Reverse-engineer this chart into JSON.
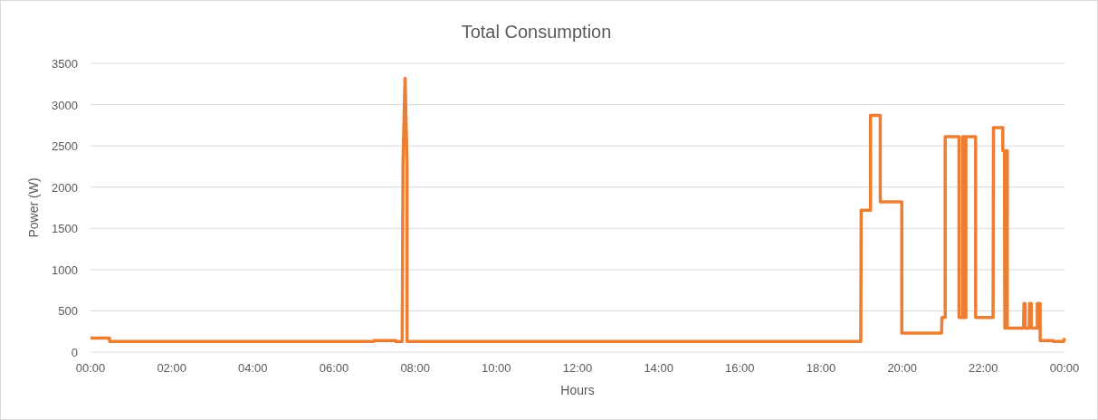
{
  "chart_data": {
    "type": "line",
    "title": "Total Consumption",
    "xlabel": "Hours",
    "ylabel": "Power (W)",
    "x": [
      0,
      0.47,
      0.47,
      6.98,
      6.98,
      7.52,
      7.52,
      7.68,
      7.7,
      7.75,
      7.8,
      7.8,
      18.98,
      18.99,
      19.22,
      19.22,
      19.46,
      19.46,
      19.99,
      19.99,
      20.97,
      20.98,
      21.06,
      21.06,
      21.4,
      21.4,
      21.49,
      21.49,
      21.53,
      21.53,
      21.57,
      21.57,
      21.62,
      21.62,
      21.81,
      21.81,
      22.24,
      22.25,
      22.48,
      22.48,
      22.52,
      22.53,
      22.56,
      22.57,
      22.59,
      22.59,
      22.99,
      23.0,
      23.03,
      23.03,
      23.13,
      23.14,
      23.18,
      23.18,
      23.33,
      23.33,
      23.4,
      23.4,
      23.72,
      23.72,
      23.98,
      24
    ],
    "series": [
      {
        "color": "#ed7d31",
        "values": [
          170,
          170,
          130,
          130,
          140,
          140,
          130,
          130,
          2280,
          3320,
          2280,
          130,
          130,
          1720,
          1720,
          2870,
          2870,
          1820,
          1820,
          230,
          230,
          420,
          420,
          2610,
          2610,
          420,
          420,
          2610,
          2610,
          420,
          420,
          2610,
          2610,
          2610,
          2610,
          420,
          420,
          2720,
          2720,
          2440,
          2440,
          290,
          290,
          2440,
          2440,
          290,
          290,
          590,
          590,
          290,
          290,
          590,
          590,
          290,
          290,
          590,
          590,
          140,
          140,
          130,
          130,
          170
        ]
      }
    ],
    "xlim": [
      0,
      24
    ],
    "xticks": [
      {
        "value": 0,
        "label": "00:00"
      },
      {
        "value": 2,
        "label": "02:00"
      },
      {
        "value": 4,
        "label": "04:00"
      },
      {
        "value": 6,
        "label": "06:00"
      },
      {
        "value": 8,
        "label": "08:00"
      },
      {
        "value": 10,
        "label": "10:00"
      },
      {
        "value": 12,
        "label": "12:00"
      },
      {
        "value": 14,
        "label": "14:00"
      },
      {
        "value": 16,
        "label": "16:00"
      },
      {
        "value": 18,
        "label": "18:00"
      },
      {
        "value": 20,
        "label": "20:00"
      },
      {
        "value": 22,
        "label": "22:00"
      },
      {
        "value": 24,
        "label": "00:00"
      }
    ],
    "ylim": [
      0,
      3500
    ],
    "yticks": [
      0,
      500,
      1000,
      1500,
      2000,
      2500,
      3000,
      3500
    ],
    "grid": "y",
    "line_style": "solid",
    "marker": "none"
  }
}
